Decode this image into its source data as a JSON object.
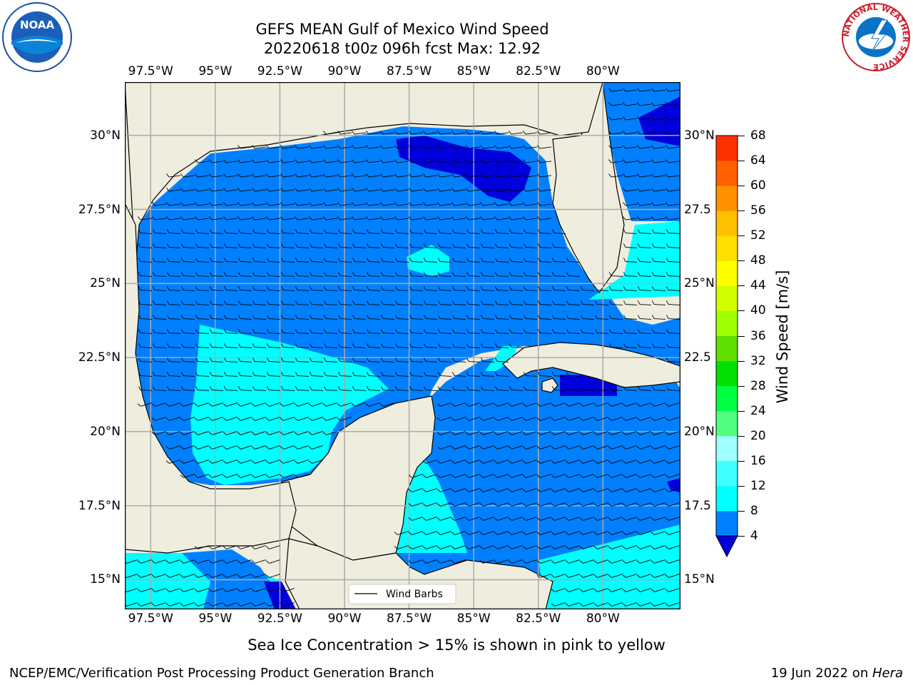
{
  "title": {
    "line1": "GEFS MEAN Gulf of Mexico Wind Speed",
    "line2": "20220618 t00z 096h fcst   Max: 12.92"
  },
  "map": {
    "lon_range": [
      -98.5,
      -77.0
    ],
    "lat_range": [
      14.0,
      31.8
    ],
    "lon_ticks": [
      -97.5,
      -95,
      -92.5,
      -90,
      -87.5,
      -85,
      -82.5,
      -80
    ],
    "lon_labels": [
      "97.5°W",
      "95°W",
      "92.5°W",
      "90°W",
      "87.5°W",
      "85°W",
      "82.5°W",
      "80°W"
    ],
    "lat_ticks": [
      30,
      27.5,
      25,
      22.5,
      20,
      17.5,
      15
    ],
    "lat_labels_left": [
      "30°N",
      "27.5°N",
      "25°N",
      "22.5°N",
      "20°N",
      "17.5°N",
      "15°N"
    ],
    "lat_labels_right": [
      "30°N",
      "27.5",
      "25°N",
      "22.5",
      "20°N",
      "17.5",
      "15°N"
    ],
    "legend_label": "Wind Barbs",
    "colors": {
      "land": "#efedde",
      "band_4_8": "#0080ff",
      "band_8_12": "#00ffff",
      "below_4": "#0000dd",
      "grid": "#aaaaaa"
    }
  },
  "colorbar": {
    "label": "Wind Speed [m/s]",
    "ticks": [
      "4",
      "8",
      "12",
      "16",
      "20",
      "24",
      "28",
      "32",
      "36",
      "40",
      "44",
      "48",
      "52",
      "56",
      "60",
      "64",
      "68"
    ],
    "colors": [
      "#0080ff",
      "#00ffff",
      "#40ffff",
      "#a0ffff",
      "#50ff80",
      "#00ff40",
      "#00e000",
      "#60e000",
      "#a0ff00",
      "#d0ff00",
      "#ffff00",
      "#ffe000",
      "#ffc000",
      "#ff9000",
      "#ff6000",
      "#ff3000",
      "#ff0000"
    ],
    "under_color": "#0000dd"
  },
  "footer": {
    "note": "Sea Ice Concentration > 15% is shown in pink to yellow",
    "branch": "NCEP/EMC/Verification Post Processing Product Generation Branch",
    "date": "19 Jun 2022 on ",
    "host": "Hera"
  },
  "logos": {
    "left_text": "NOAA",
    "right_ring_text": "NATIONAL WEATHER SERVICE"
  }
}
